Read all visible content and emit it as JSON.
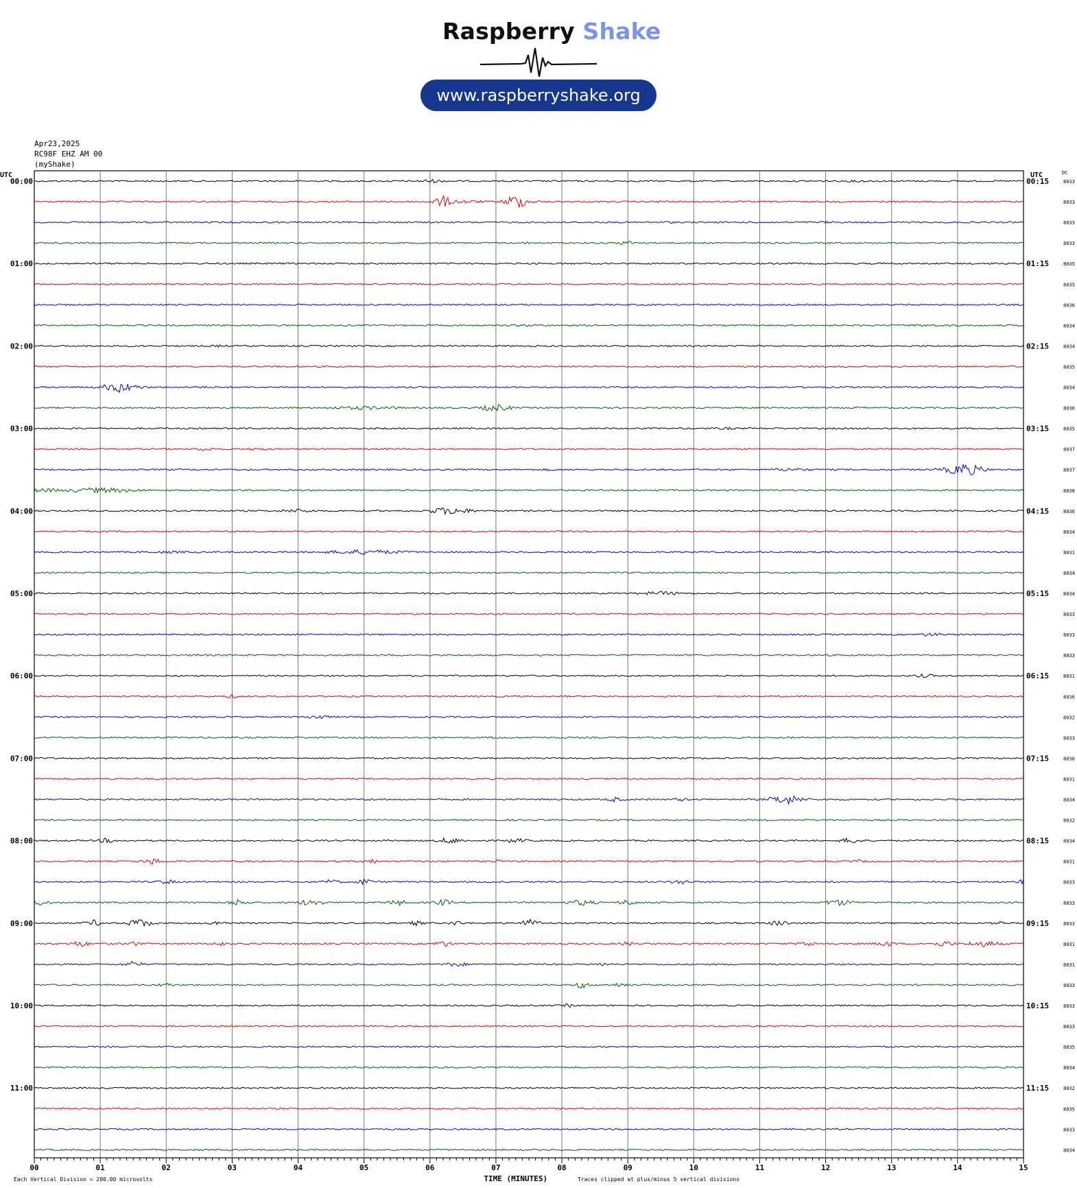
{
  "logo": {
    "brand_part1": "Raspberry",
    "brand_part2": "Shake",
    "url": "www.raspberryshake.org",
    "brand_color": "#17378e",
    "accent_color": "#7b95e3"
  },
  "header": {
    "date": "Apr23,2025",
    "station": "RC98F EHZ AM 00",
    "source": "(myShake)"
  },
  "axis": {
    "utc_label_left": "UTC",
    "utc_label_right": "UTC",
    "dc_label": "DC",
    "xlabel": "TIME (MINUTES)",
    "footer_left": "Each Vertical Division =  200.00 microvolts",
    "footer_right": "Traces clipped at plus/minus 5 vertical divisions"
  },
  "chart_data": {
    "type": "line",
    "description_type": "helicorder",
    "xlim": [
      0,
      15
    ],
    "x_ticks": [
      "00",
      "01",
      "02",
      "03",
      "04",
      "05",
      "06",
      "07",
      "08",
      "09",
      "10",
      "11",
      "12",
      "13",
      "14",
      "15"
    ],
    "trace_colors": [
      "#000000",
      "#e00000",
      "#0000e0",
      "#006000"
    ],
    "hour_labels_left": [
      "00:00",
      "01:00",
      "02:00",
      "03:00",
      "04:00",
      "05:00",
      "06:00",
      "07:00",
      "08:00",
      "09:00",
      "10:00",
      "11:00"
    ],
    "hour_labels_right": [
      "00:15",
      "01:15",
      "02:15",
      "03:15",
      "04:15",
      "05:15",
      "06:15",
      "07:15",
      "08:15",
      "09:15",
      "10:15",
      "11:15"
    ],
    "dc_values": [
      "8033",
      "8033",
      "8033",
      "8033",
      "8035",
      "8035",
      "8036",
      "8034",
      "8034",
      "8035",
      "8034",
      "8036",
      "8035",
      "8037",
      "8037",
      "8038",
      "8036",
      "8034",
      "8031",
      "8034",
      "8034",
      "8033",
      "8033",
      "8033",
      "8031",
      "8036",
      "8032",
      "8033",
      "8030",
      "8031",
      "8034",
      "8032",
      "8034",
      "8031",
      "8033",
      "8033",
      "8033",
      "8031",
      "8031",
      "8033",
      "8033",
      "8033",
      "8035",
      "8034",
      "8032",
      "8035",
      "8033",
      "8034"
    ],
    "events": [
      [
        6.0,
        0.5,
        3
      ],
      [
        12.5,
        0.6,
        2
      ],
      [
        6.2,
        0.2,
        9
      ],
      [
        7.3,
        0.2,
        12
      ],
      [
        6.5,
        1.0,
        3
      ],
      [
        7.5,
        0.6,
        3
      ],
      [
        9.5,
        0.5,
        2
      ],
      [
        9.6,
        0.3,
        2
      ],
      [
        12.0,
        0.4,
        2
      ],
      [
        9.0,
        0.4,
        3
      ],
      [
        7.5,
        0.4,
        2
      ],
      [
        7.5,
        1.0,
        2
      ],
      [
        13.5,
        1.5,
        2
      ],
      [
        2.8,
        0.3,
        2
      ],
      [
        1.3,
        0.6,
        8
      ],
      [
        2.5,
        0.5,
        2
      ],
      [
        5.0,
        2.0,
        3
      ],
      [
        7.0,
        0.5,
        6
      ],
      [
        12.5,
        0.5,
        2
      ],
      [
        10.5,
        0.5,
        2
      ],
      [
        2.6,
        0.4,
        3
      ],
      [
        3.4,
        0.3,
        3
      ],
      [
        7.8,
        0.4,
        2
      ],
      [
        11.5,
        0.8,
        3
      ],
      [
        14.1,
        0.6,
        10
      ],
      [
        0.0,
        3.0,
        3
      ],
      [
        1.0,
        2.0,
        4
      ],
      [
        4.0,
        0.8,
        3
      ],
      [
        6.3,
        0.8,
        6
      ],
      [
        2.0,
        2.0,
        2
      ],
      [
        5.0,
        2.0,
        4
      ],
      [
        9.5,
        1.2,
        3
      ],
      [
        13.6,
        0.6,
        3
      ],
      [
        2.5,
        0.5,
        2
      ],
      [
        13.5,
        0.3,
        3
      ],
      [
        3.0,
        0.2,
        3
      ],
      [
        4.3,
        0.3,
        4
      ],
      [
        7.0,
        0.3,
        2
      ],
      [
        11.3,
        0.4,
        2
      ],
      [
        5.1,
        0.2,
        2
      ],
      [
        8.8,
        0.2,
        4
      ],
      [
        9.8,
        0.2,
        3
      ],
      [
        11.4,
        0.5,
        8
      ],
      [
        1.1,
        0.2,
        4
      ],
      [
        6.3,
        0.4,
        5
      ],
      [
        7.3,
        0.3,
        4
      ],
      [
        12.4,
        0.3,
        5
      ],
      [
        1.8,
        0.3,
        5
      ],
      [
        5.1,
        0.2,
        4
      ],
      [
        7.0,
        0.1,
        3
      ],
      [
        12.5,
        0.1,
        3
      ],
      [
        2.0,
        0.2,
        4
      ],
      [
        4.5,
        0.2,
        4
      ],
      [
        5.0,
        0.2,
        5
      ],
      [
        9.8,
        0.3,
        4
      ],
      [
        15.0,
        0.1,
        4
      ],
      [
        0.1,
        0.2,
        5
      ],
      [
        3.1,
        0.3,
        5
      ],
      [
        4.2,
        0.3,
        6
      ],
      [
        5.5,
        0.2,
        5
      ],
      [
        6.2,
        0.2,
        5
      ],
      [
        8.3,
        0.4,
        5
      ],
      [
        9.0,
        0.2,
        5
      ],
      [
        12.2,
        0.5,
        5
      ],
      [
        0.9,
        0.2,
        5
      ],
      [
        1.6,
        0.3,
        7
      ],
      [
        2.8,
        0.2,
        4
      ],
      [
        5.8,
        0.1,
        4
      ],
      [
        6.4,
        0.1,
        4
      ],
      [
        7.5,
        0.3,
        6
      ],
      [
        11.3,
        0.2,
        5
      ],
      [
        14.6,
        0.1,
        4
      ],
      [
        0.7,
        0.2,
        5
      ],
      [
        1.5,
        0.1,
        4
      ],
      [
        2.8,
        0.1,
        4
      ],
      [
        6.2,
        0.2,
        5
      ],
      [
        9.0,
        0.1,
        4
      ],
      [
        11.7,
        0.2,
        4
      ],
      [
        12.9,
        0.2,
        5
      ],
      [
        13.8,
        0.2,
        5
      ],
      [
        14.4,
        0.6,
        5
      ],
      [
        1.5,
        0.2,
        5
      ],
      [
        6.4,
        0.3,
        4
      ],
      [
        8.6,
        0.1,
        3
      ],
      [
        2.0,
        0.1,
        4
      ],
      [
        8.3,
        0.2,
        5
      ],
      [
        8.9,
        0.1,
        4
      ],
      [
        8.1,
        0.1,
        3
      ]
    ]
  }
}
